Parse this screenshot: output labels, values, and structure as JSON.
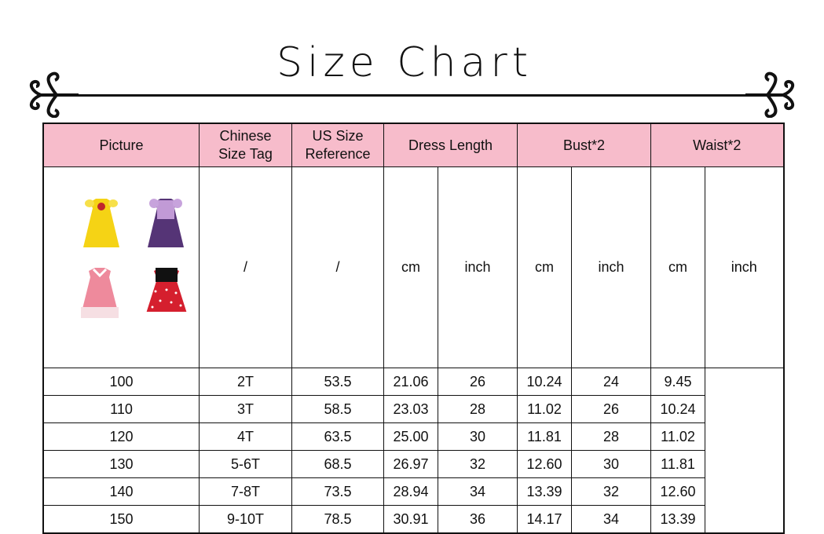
{
  "title": "Size Chart",
  "header": {
    "picture": "Picture",
    "chinese_size_tag": "Chinese Size Tag",
    "us_size_reference": "US Size Reference",
    "dress_length": "Dress Length",
    "bust": "Bust*2",
    "waist": "Waist*2"
  },
  "units": [
    "/",
    "/",
    "cm",
    "inch",
    "cm",
    "inch",
    "cm",
    "inch"
  ],
  "rows": [
    [
      "100",
      "2T",
      "53.5",
      "21.06",
      "26",
      "10.24",
      "24",
      "9.45"
    ],
    [
      "110",
      "3T",
      "58.5",
      "23.03",
      "28",
      "11.02",
      "26",
      "10.24"
    ],
    [
      "120",
      "4T",
      "63.5",
      "25.00",
      "30",
      "11.81",
      "28",
      "11.02"
    ],
    [
      "130",
      "5-6T",
      "68.5",
      "26.97",
      "32",
      "12.60",
      "30",
      "11.81"
    ],
    [
      "140",
      "7-8T",
      "73.5",
      "28.94",
      "34",
      "13.39",
      "32",
      "12.60"
    ],
    [
      "150",
      "9-10T",
      "78.5",
      "30.91",
      "36",
      "14.17",
      "34",
      "13.39"
    ]
  ],
  "colors": {
    "header_bg": "#f7bccb",
    "border": "#111111"
  },
  "pictures": [
    "yellow-dress",
    "purple-dress",
    "pink-dress",
    "red-polka-dot-dress"
  ]
}
